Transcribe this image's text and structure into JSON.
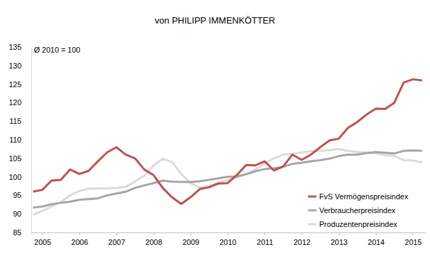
{
  "chart_data": {
    "type": "line",
    "title": "von PHILIPP IMMENKÖTTER",
    "annotation": "Ø 2010 = 100",
    "x": [
      2005.25,
      2005.5,
      2005.75,
      2006.0,
      2006.25,
      2006.5,
      2006.75,
      2007.0,
      2007.25,
      2007.5,
      2007.75,
      2008.0,
      2008.25,
      2008.5,
      2008.75,
      2009.0,
      2009.25,
      2009.5,
      2009.75,
      2010.0,
      2010.25,
      2010.5,
      2010.75,
      2011.0,
      2011.25,
      2011.5,
      2011.75,
      2012.0,
      2012.25,
      2012.5,
      2012.75,
      2013.0,
      2013.25,
      2013.5,
      2013.75,
      2014.0,
      2014.25,
      2014.5,
      2014.75,
      2015.0,
      2015.25,
      2015.5,
      2015.75
    ],
    "series": [
      {
        "name": "FvS Vermögenspreisindex",
        "color": "#c0504d",
        "values": [
          96,
          96.5,
          99,
          99.2,
          102,
          100.8,
          101.6,
          104.2,
          106.6,
          108,
          106,
          105,
          102,
          100.5,
          97,
          94.5,
          92.7,
          94.5,
          96.7,
          97.2,
          98.2,
          98.3,
          100.5,
          103.2,
          103.1,
          104.2,
          101.7,
          102.8,
          106,
          104.6,
          106,
          108,
          109.8,
          110.3,
          113.2,
          114.8,
          116.8,
          118.4,
          118.3,
          120,
          125.4,
          126.3,
          126
        ]
      },
      {
        "name": "Verbraucherpreisindex",
        "color": "#a5a5a5",
        "values": [
          91.7,
          92,
          92.6,
          93,
          93.3,
          93.8,
          94,
          94.2,
          95,
          95.5,
          96,
          97,
          97.7,
          98.3,
          99,
          98.7,
          98.6,
          98.6,
          98.8,
          99.2,
          99.6,
          100,
          100.1,
          100.7,
          101.5,
          102.1,
          102.3,
          102.7,
          103.5,
          103.8,
          104.2,
          104.5,
          104.9,
          105.6,
          106,
          106,
          106.4,
          106.7,
          106.5,
          106.3,
          107,
          107.1,
          107
        ]
      },
      {
        "name": "Produzentenpreisindex",
        "color": "#dadada",
        "values": [
          89.8,
          90.8,
          92,
          93.2,
          95,
          96.2,
          96.8,
          96.9,
          96.9,
          97,
          97.3,
          98.7,
          100.3,
          103,
          104.9,
          104,
          100.8,
          98.3,
          97.1,
          97.5,
          98.5,
          99.2,
          99.8,
          100.8,
          102,
          103.6,
          105,
          106,
          106.2,
          106.6,
          106.9,
          107,
          107.2,
          107.5,
          107,
          106.7,
          106.6,
          106.3,
          105.9,
          105.6,
          104.5,
          104.4,
          103.9
        ]
      }
    ],
    "xlim": [
      2005.2,
      2015.85
    ],
    "xticks": [
      {
        "value": 2005.5,
        "label": "2005"
      },
      {
        "value": 2006.5,
        "label": "2006"
      },
      {
        "value": 2007.5,
        "label": "2007"
      },
      {
        "value": 2008.5,
        "label": "2008"
      },
      {
        "value": 2009.5,
        "label": "2009"
      },
      {
        "value": 2010.5,
        "label": "2010"
      },
      {
        "value": 2011.5,
        "label": "2011"
      },
      {
        "value": 2012.5,
        "label": "2012"
      },
      {
        "value": 2013.5,
        "label": "2013"
      },
      {
        "value": 2014.5,
        "label": "2014"
      },
      {
        "value": 2015.5,
        "label": "2015"
      }
    ],
    "ylim": [
      85,
      135
    ],
    "yticks": [
      85,
      90,
      95,
      100,
      105,
      110,
      115,
      120,
      125,
      130,
      135
    ],
    "grid": false,
    "legend": "lower right"
  }
}
